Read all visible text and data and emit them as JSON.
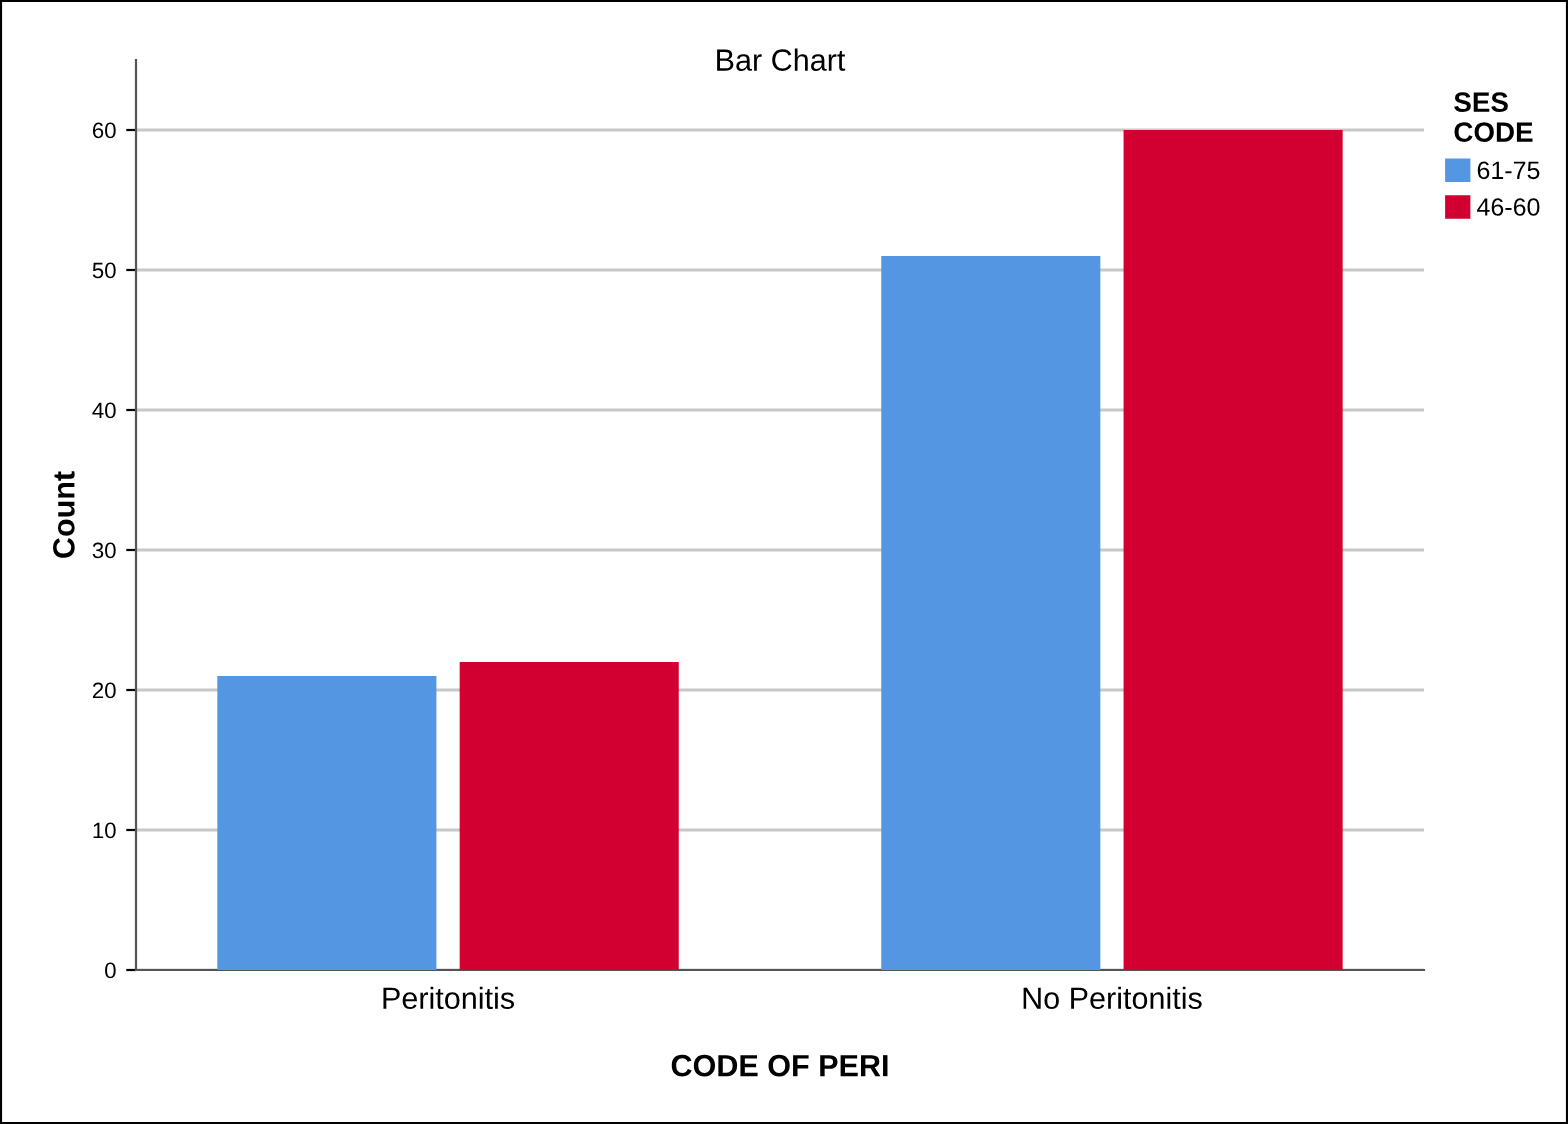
{
  "chart_data": {
    "type": "bar",
    "title": "Bar Chart",
    "xlabel": "CODE OF PERI",
    "ylabel": "Count",
    "categories": [
      "Peritonitis",
      "No Peritonitis"
    ],
    "series": [
      {
        "name": "61-75",
        "color": "#5596e3",
        "values": [
          21,
          51
        ]
      },
      {
        "name": "46-60",
        "color": "#d20030",
        "values": [
          22,
          60
        ]
      }
    ],
    "legend_title": "SES\nCODE",
    "legend": "right",
    "ylim": [
      0,
      65
    ],
    "yticks": [
      0,
      10,
      20,
      30,
      40,
      50,
      60
    ],
    "grid": "y"
  }
}
